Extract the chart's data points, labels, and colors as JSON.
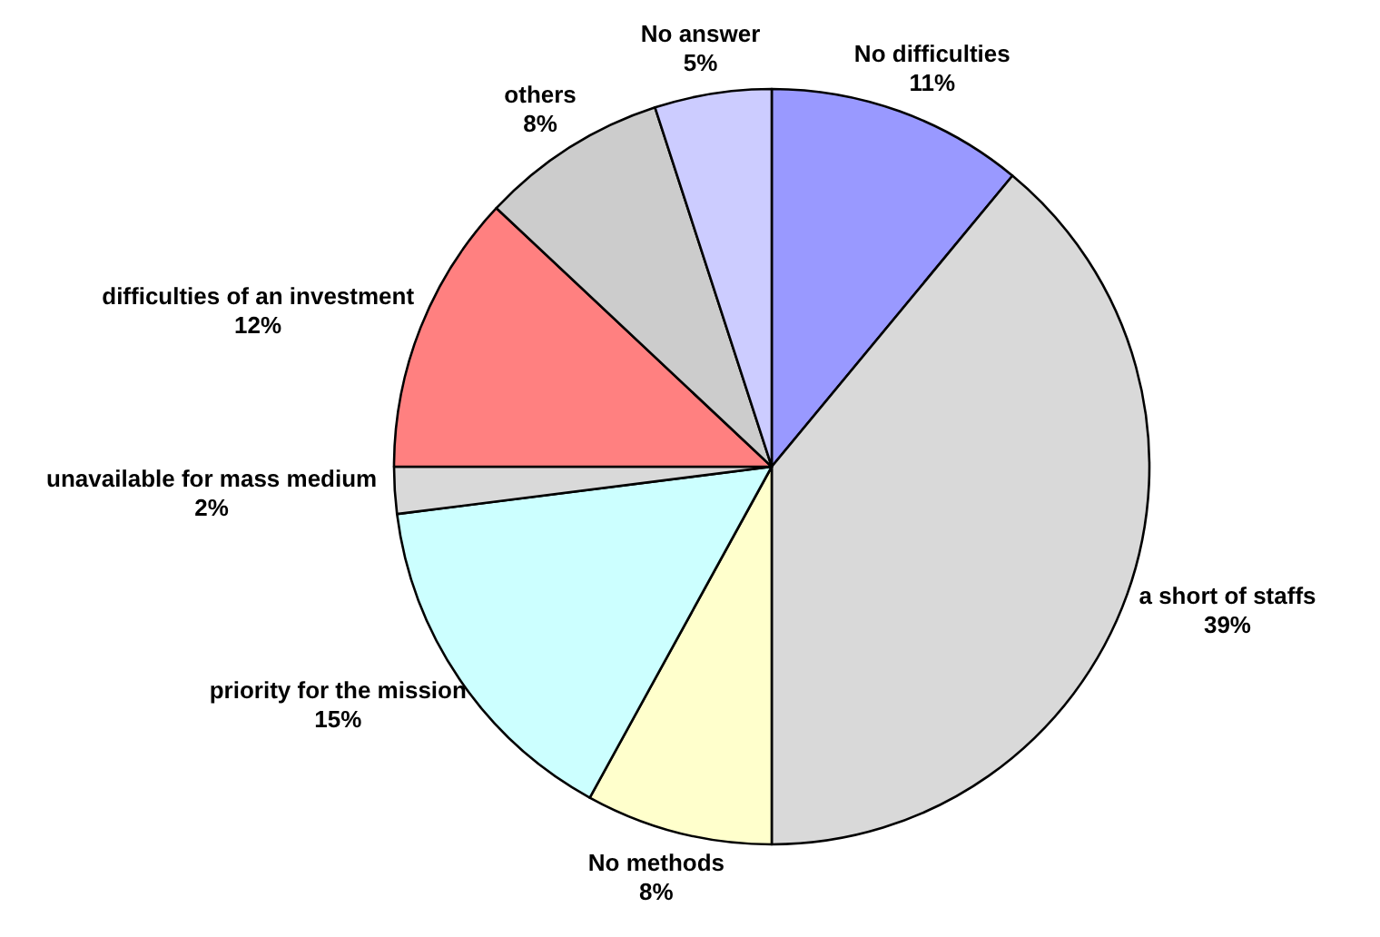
{
  "chart_data": {
    "type": "pie",
    "categories": [
      "No difficulties",
      "a short of staffs",
      "No methods",
      "priority for the mission",
      "unavailable for mass medium",
      "difficulties of an investment",
      "others",
      "No answer"
    ],
    "values": [
      11,
      39,
      8,
      15,
      2,
      12,
      8,
      5
    ],
    "colors": [
      "#9999ff",
      "#d9d9d9",
      "#ffffcc",
      "#ccffff",
      "#d9d9d9",
      "#ff8080",
      "#cccccc",
      "#ccccff"
    ],
    "value_labels": [
      "11%",
      "39%",
      "8%",
      "15%",
      "2%",
      "12%",
      "8%",
      "5%"
    ],
    "legend": false
  }
}
